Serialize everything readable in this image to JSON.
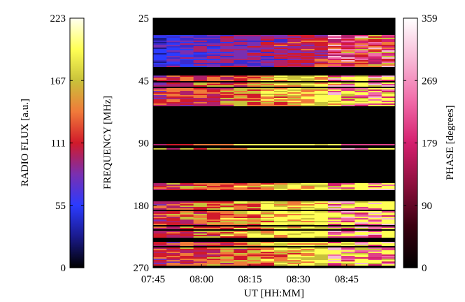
{
  "chart_data": {
    "type": "heatmap",
    "title": "",
    "left_colorbar": {
      "label": "RADIO FLUX [a.u.]",
      "ticks": [
        "223",
        "167",
        "111",
        "55",
        "0"
      ],
      "range": [
        0,
        223
      ],
      "colormap": [
        "#000000",
        "#1a1a8c",
        "#2b3bff",
        "#7a2fb0",
        "#d11a2a",
        "#f07a3a",
        "#c9c23a",
        "#ffff55",
        "#fffff0"
      ]
    },
    "right_colorbar": {
      "label": "PHASE [degrees]",
      "ticks": [
        "359",
        "269",
        "179",
        "90",
        "0"
      ],
      "range": [
        0,
        359
      ],
      "colormap": [
        "#000000",
        "#3a0010",
        "#8c0f3c",
        "#d41f6e",
        "#f06aa8",
        "#f7b8d6",
        "#ffffff"
      ]
    },
    "y_axis": {
      "label": "FREQUENCY [MHz]",
      "ticks": [
        "25",
        "45",
        "90",
        "180",
        "270"
      ],
      "range": [
        25,
        270
      ]
    },
    "x_axis": {
      "label": "UT [HH:MM]",
      "ticks": [
        "07:45",
        "08:00",
        "08:15",
        "08:30",
        "08:45"
      ],
      "range": [
        "07:45",
        "09:00"
      ]
    }
  }
}
